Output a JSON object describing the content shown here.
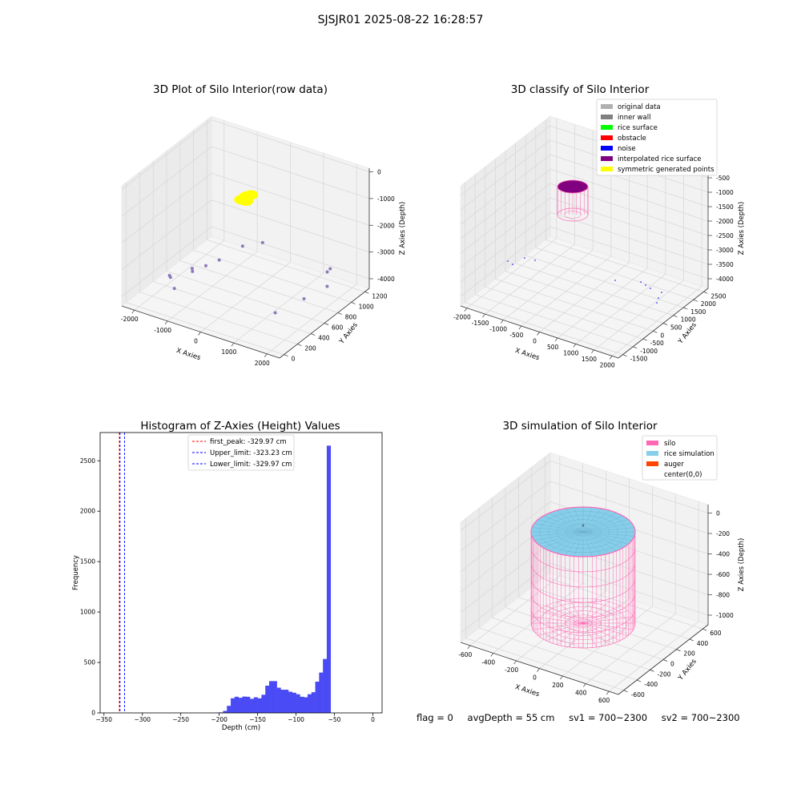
{
  "suptitle": "SJSJR01 2025-08-22 16:28:57",
  "colors": {
    "original": "#b0b0b0",
    "inner_wall": "#808080",
    "rice_surface": "#00ff00",
    "obstacle": "#ff0000",
    "noise": "#0000ff",
    "interpolated": "#800080",
    "symmetric": "#ffff00",
    "silo": "#ff69b4",
    "rice_sim": "#87ceeb",
    "auger": "#ff4500",
    "hist_bar": "#4b4bf5"
  },
  "chart_data": [
    {
      "type": "scatter",
      "title": "3D Plot of Silo Interior(row data)",
      "xlabel": "X Axies",
      "ylabel": "Y Axies",
      "zlabel": "Z Axies (Depth)",
      "x_ticks": [
        "-2000",
        "-1000",
        "0",
        "1000",
        "2000"
      ],
      "y_ticks": [
        "0",
        "200",
        "400",
        "600",
        "800",
        "1000",
        "1200"
      ],
      "z_ticks": [
        "0",
        "-1000",
        "-2000",
        "-3000",
        "-4000"
      ],
      "series": [
        {
          "color": "symmetric",
          "points": [
            [
              -1050,
              1130,
              -2050
            ],
            [
              -1000,
              1100,
              -2150
            ],
            [
              -950,
              1150,
              -2000
            ],
            [
              -1100,
              1080,
              -2100
            ]
          ]
        },
        {
          "color": "interpolated",
          "points": [
            [
              -2050,
              480,
              -4150
            ],
            [
              -2000,
              470,
              -4180
            ],
            [
              -1650,
              620,
              -4000
            ],
            [
              -1600,
              600,
              -4050
            ],
            [
              -1400,
              700,
              -3950
            ],
            [
              -1200,
              800,
              -3850
            ],
            [
              -900,
              1000,
              -3600
            ],
            [
              -500,
              1100,
              -3500
            ],
            [
              -1700,
              380,
              -4300
            ],
            [
              1450,
              1100,
              -3800
            ],
            [
              1500,
              1120,
              -3700
            ],
            [
              1550,
              1050,
              -4200
            ],
            [
              1400,
              780,
              -4200
            ],
            [
              1100,
              500,
              -4300
            ]
          ]
        }
      ]
    },
    {
      "type": "scatter",
      "title": "3D classify of Silo Interior",
      "xlabel": "X Axies",
      "ylabel": "Y Axies",
      "zlabel": "Z Axies (Depth)",
      "x_ticks": [
        "-2000",
        "-1500",
        "-1000",
        "-500",
        "0",
        "500",
        "1000",
        "1500",
        "2000"
      ],
      "y_ticks": [
        "-1500",
        "-1000",
        "-500",
        "0",
        "500",
        "1000",
        "1500",
        "2000",
        "2500"
      ],
      "z_ticks": [
        "-500",
        "-1000",
        "-1500",
        "-2000",
        "-2500",
        "-3000",
        "-3500",
        "-4000"
      ],
      "legend": [
        "original data",
        "inner wall",
        "rice surface",
        "obstacle",
        "noise",
        "interpolated rice surface",
        "symmetric generated points"
      ],
      "legend_colors": [
        "original",
        "inner_wall",
        "rice_surface",
        "obstacle",
        "noise",
        "interpolated",
        "symmetric"
      ]
    },
    {
      "type": "bar",
      "title": "Histogram of Z-Axies (Height) Values",
      "xlabel": "Depth (cm)",
      "ylabel": "Frequency",
      "xlim": [
        -355,
        12
      ],
      "ylim": [
        0,
        2780
      ],
      "x_ticks": [
        -350,
        -300,
        -250,
        -200,
        -150,
        -100,
        -50,
        0
      ],
      "y_ticks": [
        0,
        500,
        1000,
        1500,
        2000,
        2500
      ],
      "bin_start": -205,
      "bin_width": 5,
      "values": [
        2,
        5,
        20,
        70,
        145,
        160,
        150,
        162,
        160,
        140,
        155,
        145,
        180,
        270,
        315,
        315,
        250,
        230,
        230,
        210,
        200,
        185,
        160,
        155,
        185,
        205,
        310,
        400,
        535,
        2650
      ],
      "lines": [
        {
          "label": "first_peak: -329.97 cm",
          "x": -329.97,
          "color": "#ff0000"
        },
        {
          "label": "Upper_limit: -323.23 cm",
          "x": -323.23,
          "color": "#0000ff"
        },
        {
          "label": "Lower_limit: -329.97 cm",
          "x": -329.97,
          "color": "#0000ff"
        }
      ]
    },
    {
      "type": "scatter",
      "title": "3D simulation of Silo Interior",
      "xlabel": "X Axies",
      "ylabel": "Y Axies",
      "zlabel": "Z Axies (Depth)",
      "x_ticks": [
        "-600",
        "-400",
        "-200",
        "0",
        "200",
        "400",
        "600"
      ],
      "y_ticks": [
        "-600",
        "-400",
        "-200",
        "0",
        "200",
        "400",
        "600"
      ],
      "z_ticks": [
        "0",
        "-200",
        "-400",
        "-600",
        "-800",
        "-1000"
      ],
      "legend": [
        "silo",
        "rice simulation",
        "auger",
        "center(0,0)"
      ],
      "legend_colors": [
        "silo",
        "rice_sim",
        "auger",
        null
      ]
    }
  ],
  "status": {
    "flag": "flag = 0",
    "avg_depth": "avgDepth = 55 cm",
    "sv1": "sv1 = 700~2300",
    "sv2": "sv2 = 700~2300"
  }
}
